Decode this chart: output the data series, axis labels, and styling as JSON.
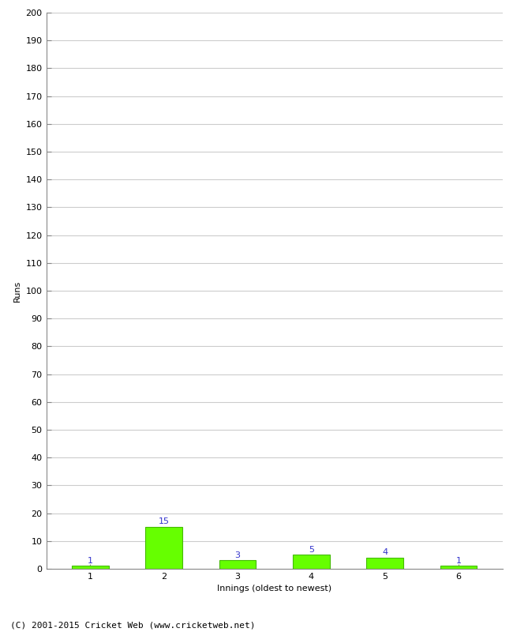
{
  "xlabel": "Innings (oldest to newest)",
  "ylabel": "Runs",
  "categories": [
    1,
    2,
    3,
    4,
    5,
    6
  ],
  "values": [
    1,
    15,
    3,
    5,
    4,
    1
  ],
  "bar_color": "#66ff00",
  "bar_edge_color": "#44bb00",
  "label_color": "#3333cc",
  "ylim": [
    0,
    200
  ],
  "yticks": [
    0,
    10,
    20,
    30,
    40,
    50,
    60,
    70,
    80,
    90,
    100,
    110,
    120,
    130,
    140,
    150,
    160,
    170,
    180,
    190,
    200
  ],
  "background_color": "#ffffff",
  "grid_color": "#cccccc",
  "footer": "(C) 2001-2015 Cricket Web (www.cricketweb.net)",
  "label_fontsize": 8,
  "axis_label_fontsize": 8,
  "tick_fontsize": 8,
  "footer_fontsize": 8
}
